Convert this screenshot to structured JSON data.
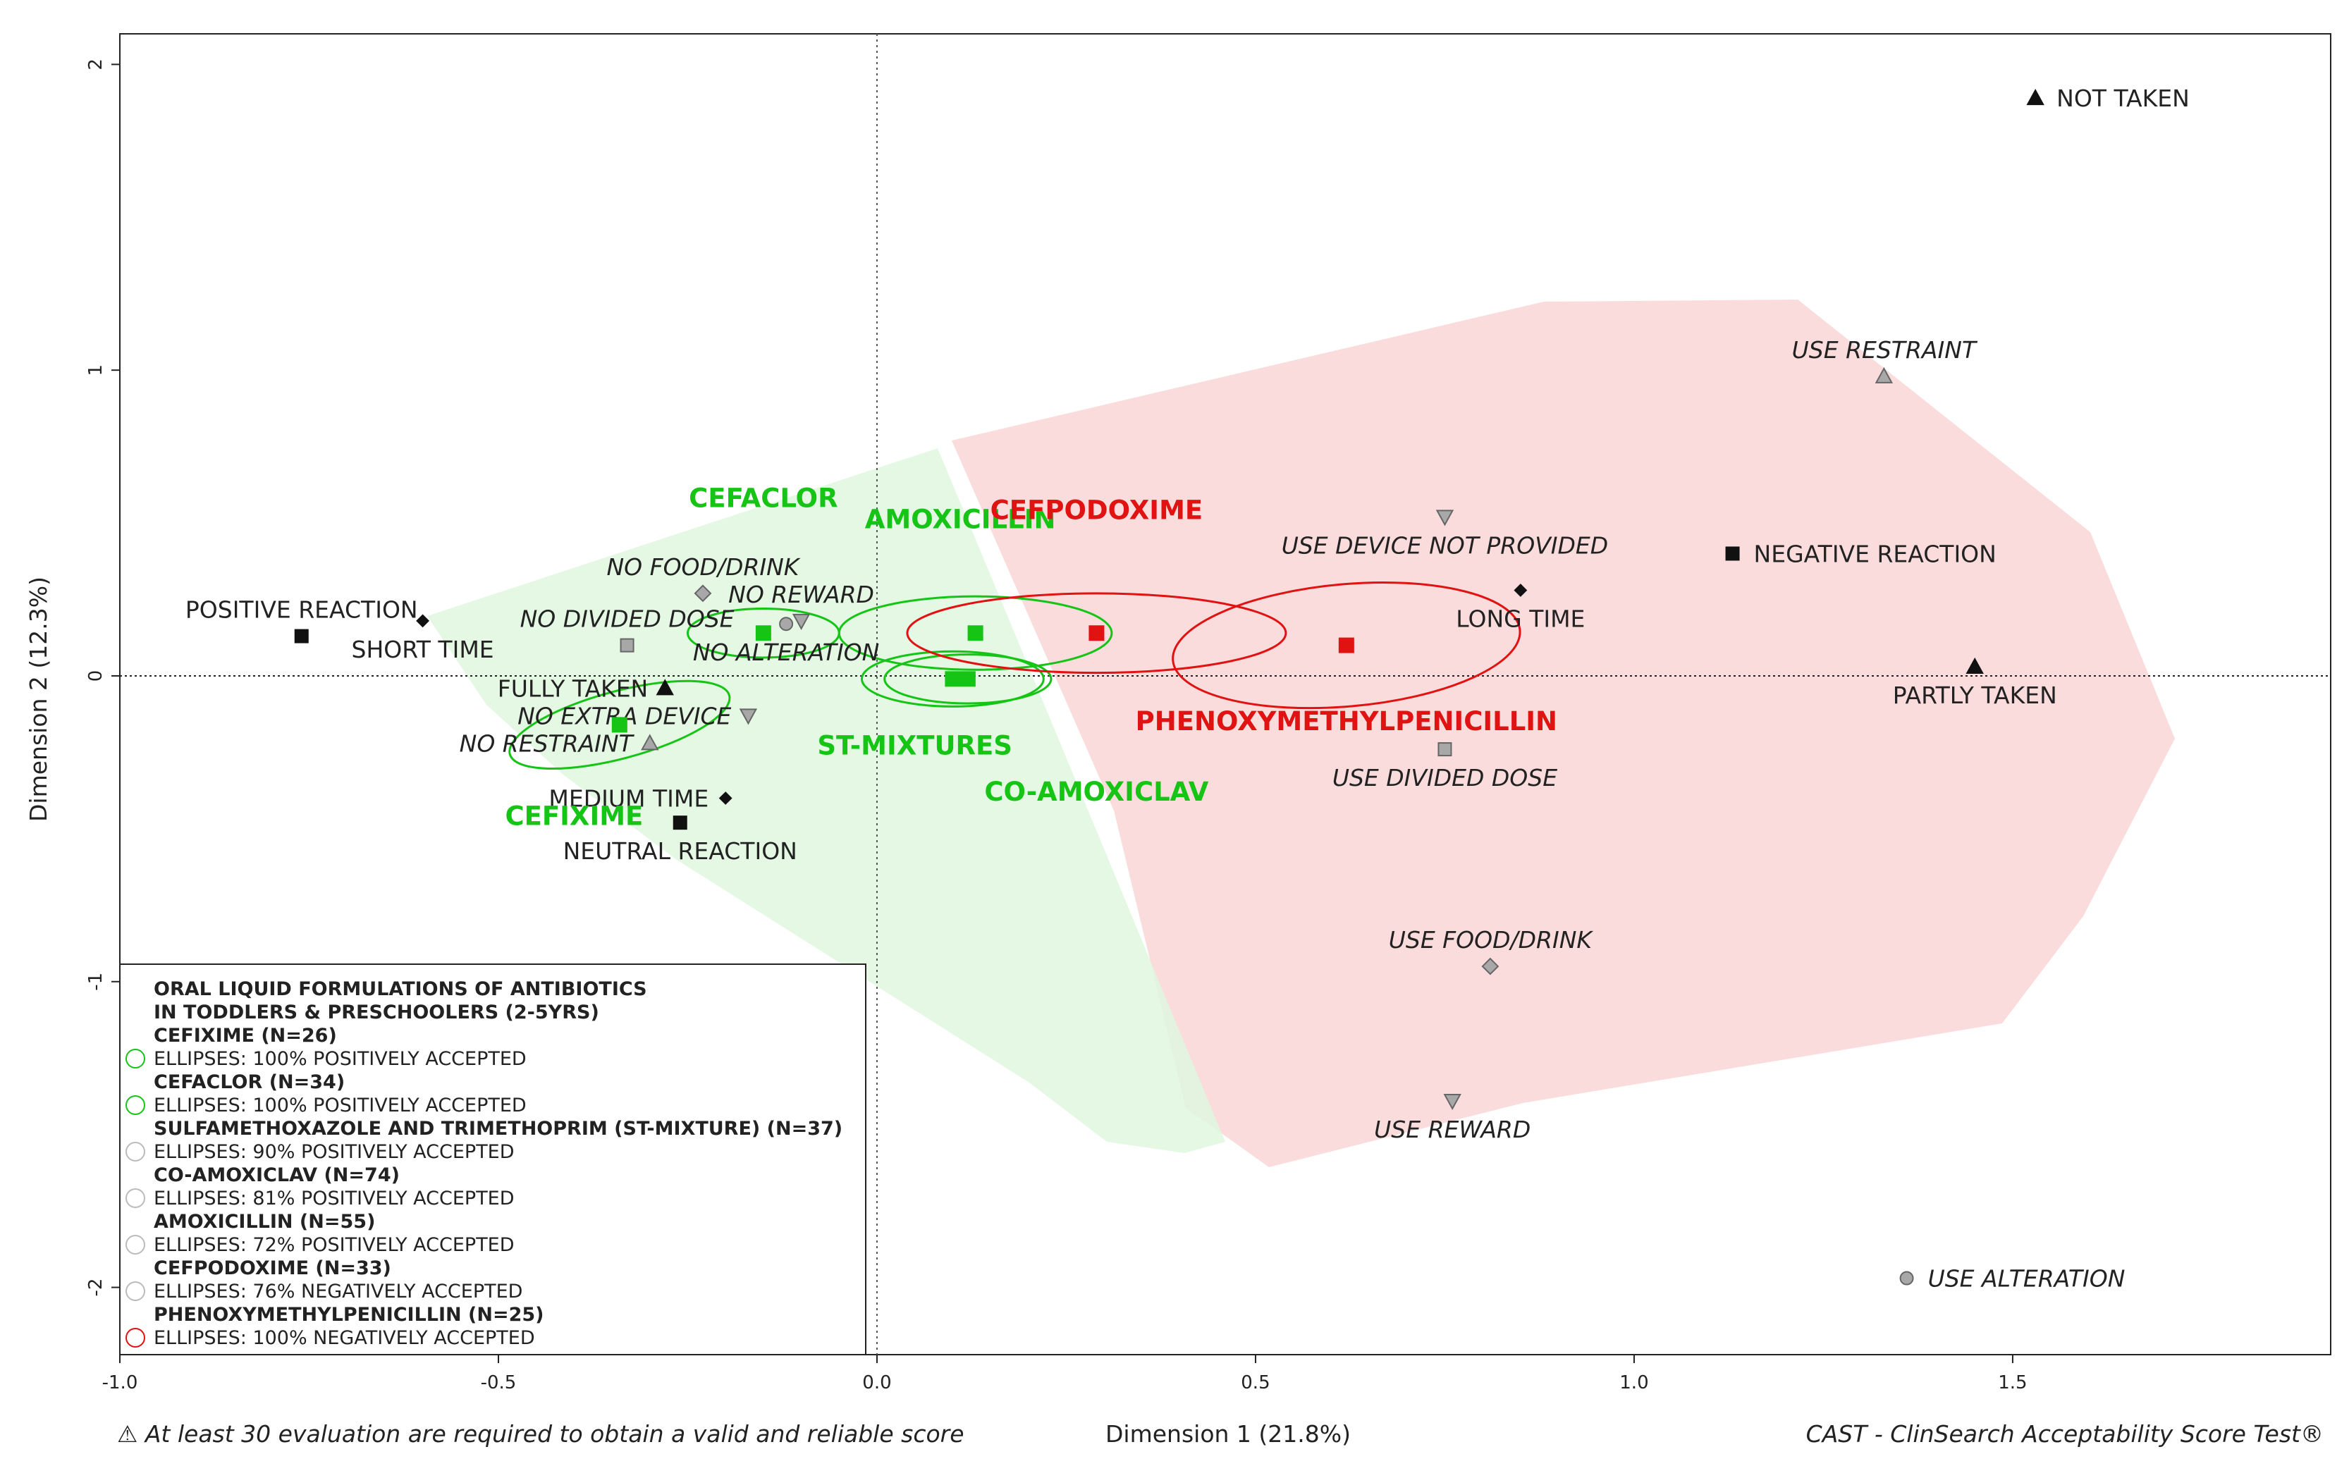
{
  "chart_data": {
    "type": "scatter",
    "xlabel": "Dimension 1 (21.8%)",
    "ylabel": "Dimension 2 (12.3%)",
    "xlim": [
      -1.0,
      1.92
    ],
    "ylim": [
      -2.22,
      2.1
    ],
    "x_ticks": [
      {
        "value": -1.0,
        "label": "-1.0"
      },
      {
        "value": -0.5,
        "label": "-0.5"
      },
      {
        "value": 0.0,
        "label": "0.0"
      },
      {
        "value": 0.5,
        "label": "0.5"
      },
      {
        "value": 1.0,
        "label": "1.0"
      },
      {
        "value": 1.5,
        "label": "1.5"
      }
    ],
    "y_ticks": [
      {
        "value": 2,
        "label": "2"
      },
      {
        "value": 1,
        "label": "1"
      },
      {
        "value": 0,
        "label": "0"
      },
      {
        "value": -1,
        "label": "-1"
      },
      {
        "value": -2,
        "label": "-2"
      }
    ],
    "categories": [
      {
        "label": "NOT TAKEN",
        "x": 1.53,
        "y": 1.89,
        "marker": "triangle-black",
        "anchor": "right",
        "italic": false
      },
      {
        "label": "PARTLY TAKEN",
        "x": 1.45,
        "y": 0.03,
        "marker": "triangle-black",
        "anchor": "below",
        "italic": false
      },
      {
        "label": "FULLY TAKEN",
        "x": -0.28,
        "y": -0.04,
        "marker": "triangle-black",
        "anchor": "left",
        "italic": false
      },
      {
        "label": "NEGATIVE REACTION",
        "x": 1.13,
        "y": 0.4,
        "marker": "square-black",
        "anchor": "right",
        "italic": false
      },
      {
        "label": "POSITIVE REACTION",
        "x": -0.76,
        "y": 0.13,
        "marker": "square-black",
        "anchor": "above",
        "italic": false
      },
      {
        "label": "NEUTRAL REACTION",
        "x": -0.26,
        "y": -0.48,
        "marker": "square-black",
        "anchor": "below",
        "italic": false
      },
      {
        "label": "SHORT TIME",
        "x": -0.6,
        "y": 0.18,
        "marker": "diamond-black",
        "anchor": "below",
        "italic": false
      },
      {
        "label": "LONG TIME",
        "x": 0.85,
        "y": 0.28,
        "marker": "diamond-black",
        "anchor": "below",
        "italic": false
      },
      {
        "label": "MEDIUM TIME",
        "x": -0.2,
        "y": -0.4,
        "marker": "diamond-black",
        "anchor": "left",
        "italic": false
      },
      {
        "label": "USE RESTRAINT",
        "x": 1.33,
        "y": 0.98,
        "marker": "triangle-grey",
        "anchor": "above",
        "italic": true
      },
      {
        "label": "NO RESTRAINT",
        "x": -0.3,
        "y": -0.22,
        "marker": "triangle-grey",
        "anchor": "left",
        "italic": true
      },
      {
        "label": "USE DEVICE NOT PROVIDED",
        "x": 0.75,
        "y": 0.52,
        "marker": "invtriangle-grey",
        "anchor": "below",
        "italic": true
      },
      {
        "label": "NO EXTRA DEVICE",
        "x": -0.17,
        "y": -0.13,
        "marker": "invtriangle-grey",
        "anchor": "left",
        "italic": true
      },
      {
        "label": "USE REWARD",
        "x": 0.76,
        "y": -1.39,
        "marker": "invtriangle-grey",
        "anchor": "below",
        "italic": true
      },
      {
        "label": "NO REWARD",
        "x": -0.1,
        "y": 0.18,
        "marker": "invtriangle-grey",
        "anchor": "above",
        "italic": true
      },
      {
        "label": "USE FOOD/DRINK",
        "x": 0.81,
        "y": -0.95,
        "marker": "diamond-grey",
        "anchor": "above",
        "italic": true
      },
      {
        "label": "NO FOOD/DRINK",
        "x": -0.23,
        "y": 0.27,
        "marker": "diamond-grey",
        "anchor": "above",
        "italic": true
      },
      {
        "label": "USE DIVIDED DOSE",
        "x": 0.75,
        "y": -0.24,
        "marker": "square-grey",
        "anchor": "below",
        "italic": true
      },
      {
        "label": "NO DIVIDED DOSE",
        "x": -0.33,
        "y": 0.1,
        "marker": "square-grey",
        "anchor": "above",
        "italic": true
      },
      {
        "label": "USE ALTERATION",
        "x": 1.36,
        "y": -1.97,
        "marker": "circle-grey",
        "anchor": "right",
        "italic": true
      },
      {
        "label": "NO ALTERATION",
        "x": -0.12,
        "y": 0.17,
        "marker": "circle-grey",
        "anchor": "below",
        "italic": true
      }
    ],
    "medicines": [
      {
        "label": "CEFIXIME",
        "x": -0.34,
        "y": -0.16,
        "color": "#16c416",
        "ellipse": {
          "rx": 0.15,
          "ry": 0.11,
          "angle": -15
        },
        "label_dx": -0.06,
        "label_dy": -0.3
      },
      {
        "label": "CEFACLOR",
        "x": -0.15,
        "y": 0.14,
        "color": "#16c416",
        "ellipse": {
          "rx": 0.1,
          "ry": 0.08,
          "angle": 0
        },
        "label_dx": 0.0,
        "label_dy": 0.44
      },
      {
        "label": "ST-MIXTURES",
        "x": 0.1,
        "y": -0.01,
        "color": "#16c416",
        "ellipse": {
          "rx": 0.12,
          "ry": 0.09,
          "angle": 0
        },
        "label_dx": -0.05,
        "label_dy": -0.22
      },
      {
        "label": "CO-AMOXICLAV",
        "x": 0.12,
        "y": -0.01,
        "color": "#16c416",
        "ellipse": {
          "rx": 0.11,
          "ry": 0.08,
          "angle": 0
        },
        "label_dx": 0.17,
        "label_dy": -0.37
      },
      {
        "label": "AMOXICILLIN",
        "x": 0.13,
        "y": 0.14,
        "color": "#16c416",
        "ellipse": {
          "rx": 0.18,
          "ry": 0.12,
          "angle": 0
        },
        "label_dx": -0.02,
        "label_dy": 0.37
      },
      {
        "label": "CEFPODOXIME",
        "x": 0.29,
        "y": 0.14,
        "color": "#e01212",
        "ellipse": {
          "rx": 0.25,
          "ry": 0.13,
          "angle": 0
        },
        "label_dx": 0.0,
        "label_dy": 0.4
      },
      {
        "label": "PHENOXYMETHYLPENICILLIN",
        "x": 0.62,
        "y": 0.1,
        "color": "#e01212",
        "ellipse": {
          "rx": 0.23,
          "ry": 0.2,
          "angle": -5
        },
        "label_dx": 0.0,
        "label_dy": -0.25
      }
    ],
    "regions": {
      "green_fill": "#dff7df",
      "red_fill": "#fbdcdc"
    },
    "legend": {
      "placement": "bottom-left",
      "title_lines": [
        "ORAL LIQUID FORMULATIONS OF ANTIBIOTICS",
        "IN TODDLERS & PRESCHOOLERS (2-5YRS)"
      ],
      "entries": [
        {
          "name": "CEFIXIME (N=26)",
          "desc": "ELLIPSES: 100% POSITIVELY ACCEPTED",
          "color": "#16c416"
        },
        {
          "name": "CEFACLOR (N=34)",
          "desc": "ELLIPSES: 100% POSITIVELY ACCEPTED",
          "color": "#16c416"
        },
        {
          "name": "SULFAMETHOXAZOLE AND TRIMETHOPRIM (ST-MIXTURE) (N=37)",
          "desc": "ELLIPSES: 90% POSITIVELY ACCEPTED",
          "color": "#bbbbbb"
        },
        {
          "name": "CO-AMOXICLAV (N=74)",
          "desc": "ELLIPSES: 81% POSITIVELY ACCEPTED",
          "color": "#bbbbbb"
        },
        {
          "name": "AMOXICILLIN (N=55)",
          "desc": "ELLIPSES: 72% POSITIVELY ACCEPTED",
          "color": "#bbbbbb"
        },
        {
          "name": "CEFPODOXIME (N=33)",
          "desc": "ELLIPSES: 76% NEGATIVELY ACCEPTED",
          "color": "#bbbbbb"
        },
        {
          "name": "PHENOXYMETHYLPENICILLIN (N=25)",
          "desc": "ELLIPSES: 100% NEGATIVELY ACCEPTED",
          "color": "#e01212"
        }
      ]
    },
    "footnote_left": "⚠ At least 30 evaluation are required to obtain a valid and reliable score",
    "footnote_right": "CAST - ClinSearch Acceptability Score Test®"
  }
}
